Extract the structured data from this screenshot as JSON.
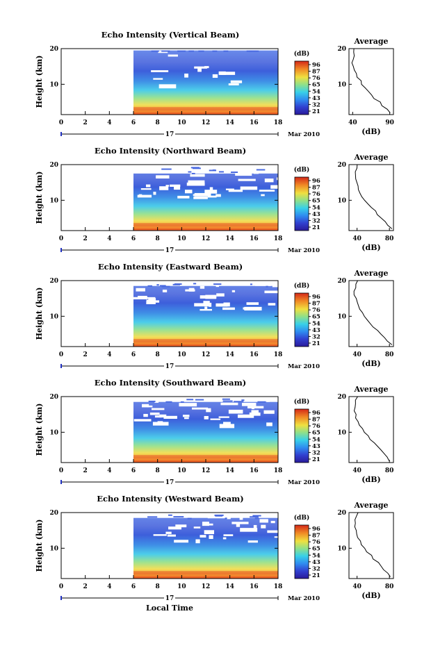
{
  "x_axis_label": "Local Time",
  "timeline": {
    "day": "17",
    "month_year": "Mar 2010"
  },
  "colorbar": {
    "unit": "(dB)",
    "ticks": [
      "96",
      "87",
      "76",
      "65",
      "54",
      "43",
      "32",
      "21"
    ]
  },
  "chart_data": [
    {
      "type": "heatmap",
      "title": "Echo Intensity (Vertical Beam)",
      "xlabel": "",
      "ylabel": "Height (km)",
      "x_ticks": [
        "0",
        "2",
        "4",
        "6",
        "8",
        "10",
        "12",
        "14",
        "16",
        "18"
      ],
      "y_ticks": [
        "10",
        "20"
      ],
      "xlim": [
        0,
        18
      ],
      "ylim": [
        1.5,
        20
      ],
      "data_start_hour": 6,
      "colorbar_range_db": [
        21,
        96
      ],
      "average_profile": {
        "title": "Average",
        "xlabel": "(dB)",
        "x_ticks": [
          "40",
          "90"
        ],
        "y_ticks": [
          "10",
          "20"
        ],
        "xlim": [
          35,
          95
        ],
        "height_km": [
          2,
          3,
          4,
          5,
          6,
          7,
          8,
          9,
          10,
          11,
          12,
          13,
          14,
          15,
          16,
          17,
          18,
          19,
          20
        ],
        "db": [
          90,
          86,
          80,
          76,
          70,
          66,
          61,
          57,
          53,
          50,
          46,
          44,
          42,
          41,
          40,
          40,
          41,
          42,
          43
        ]
      }
    },
    {
      "type": "heatmap",
      "title": "Echo Intensity (Northward Beam)",
      "xlabel": "",
      "ylabel": "Height (km)",
      "x_ticks": [
        "0",
        "2",
        "4",
        "6",
        "8",
        "10",
        "12",
        "14",
        "16",
        "18"
      ],
      "y_ticks": [
        "10",
        "20"
      ],
      "xlim": [
        0,
        18
      ],
      "ylim": [
        1.5,
        20
      ],
      "data_start_hour": 6,
      "colorbar_range_db": [
        21,
        96
      ],
      "average_profile": {
        "title": "Average",
        "xlabel": "(dB)",
        "x_ticks": [
          "40",
          "80"
        ],
        "y_ticks": [
          "10",
          "20"
        ],
        "xlim": [
          30,
          85
        ],
        "height_km": [
          2,
          3,
          4,
          5,
          6,
          7,
          8,
          9,
          10,
          11,
          12,
          13,
          14,
          15,
          16,
          17,
          18,
          19,
          20
        ],
        "db": [
          82,
          78,
          74,
          70,
          66,
          62,
          58,
          54,
          50,
          47,
          44,
          42,
          40,
          39,
          38,
          38,
          39,
          40,
          41
        ]
      }
    },
    {
      "type": "heatmap",
      "title": "Echo Intensity (Eastward Beam)",
      "xlabel": "",
      "ylabel": "Height (km)",
      "x_ticks": [
        "0",
        "2",
        "4",
        "6",
        "8",
        "10",
        "12",
        "14",
        "16",
        "18"
      ],
      "y_ticks": [
        "10",
        "20"
      ],
      "xlim": [
        0,
        18
      ],
      "ylim": [
        1.5,
        20
      ],
      "data_start_hour": 6,
      "colorbar_range_db": [
        21,
        96
      ],
      "average_profile": {
        "title": "Average",
        "xlabel": "(dB)",
        "x_ticks": [
          "40",
          "80"
        ],
        "y_ticks": [
          "10",
          "20"
        ],
        "xlim": [
          30,
          85
        ],
        "height_km": [
          2,
          3,
          4,
          5,
          6,
          7,
          8,
          9,
          10,
          11,
          12,
          13,
          14,
          15,
          16,
          17,
          18,
          19,
          20
        ],
        "db": [
          82,
          78,
          73,
          69,
          65,
          61,
          57,
          53,
          49,
          46,
          43,
          41,
          39,
          38,
          37,
          37,
          38,
          39,
          40
        ]
      }
    },
    {
      "type": "heatmap",
      "title": "Echo Intensity (Southward Beam)",
      "xlabel": "",
      "ylabel": "Height (km)",
      "x_ticks": [
        "0",
        "2",
        "4",
        "6",
        "8",
        "10",
        "12",
        "14",
        "16",
        "18"
      ],
      "y_ticks": [
        "10",
        "20"
      ],
      "xlim": [
        0,
        18
      ],
      "ylim": [
        1.5,
        20
      ],
      "data_start_hour": 6,
      "colorbar_range_db": [
        21,
        96
      ],
      "average_profile": {
        "title": "Average",
        "xlabel": "(dB)",
        "x_ticks": [
          "40",
          "80"
        ],
        "y_ticks": [
          "10",
          "20"
        ],
        "xlim": [
          30,
          85
        ],
        "height_km": [
          2,
          3,
          4,
          5,
          6,
          7,
          8,
          9,
          10,
          11,
          12,
          13,
          14,
          15,
          16,
          17,
          18,
          19,
          20
        ],
        "db": [
          80,
          77,
          73,
          69,
          65,
          61,
          57,
          53,
          49,
          46,
          43,
          41,
          39,
          38,
          37,
          37,
          38,
          39,
          40
        ]
      }
    },
    {
      "type": "heatmap",
      "title": "Echo Intensity (Westward Beam)",
      "xlabel": "",
      "ylabel": "Height (km)",
      "x_ticks": [
        "0",
        "2",
        "4",
        "6",
        "8",
        "10",
        "12",
        "14",
        "16",
        "18"
      ],
      "y_ticks": [
        "10",
        "20"
      ],
      "xlim": [
        0,
        18
      ],
      "ylim": [
        1.5,
        20
      ],
      "data_start_hour": 6,
      "colorbar_range_db": [
        21,
        96
      ],
      "average_profile": {
        "title": "Average",
        "xlabel": "(dB)",
        "x_ticks": [
          "40",
          "80"
        ],
        "y_ticks": [
          "10",
          "20"
        ],
        "xlim": [
          30,
          85
        ],
        "height_km": [
          2,
          3,
          4,
          5,
          6,
          7,
          8,
          9,
          10,
          11,
          12,
          13,
          14,
          15,
          16,
          17,
          18,
          19,
          20
        ],
        "db": [
          82,
          78,
          74,
          70,
          66,
          61,
          57,
          53,
          49,
          46,
          43,
          41,
          39,
          38,
          37,
          37,
          38,
          39,
          40
        ]
      }
    }
  ]
}
